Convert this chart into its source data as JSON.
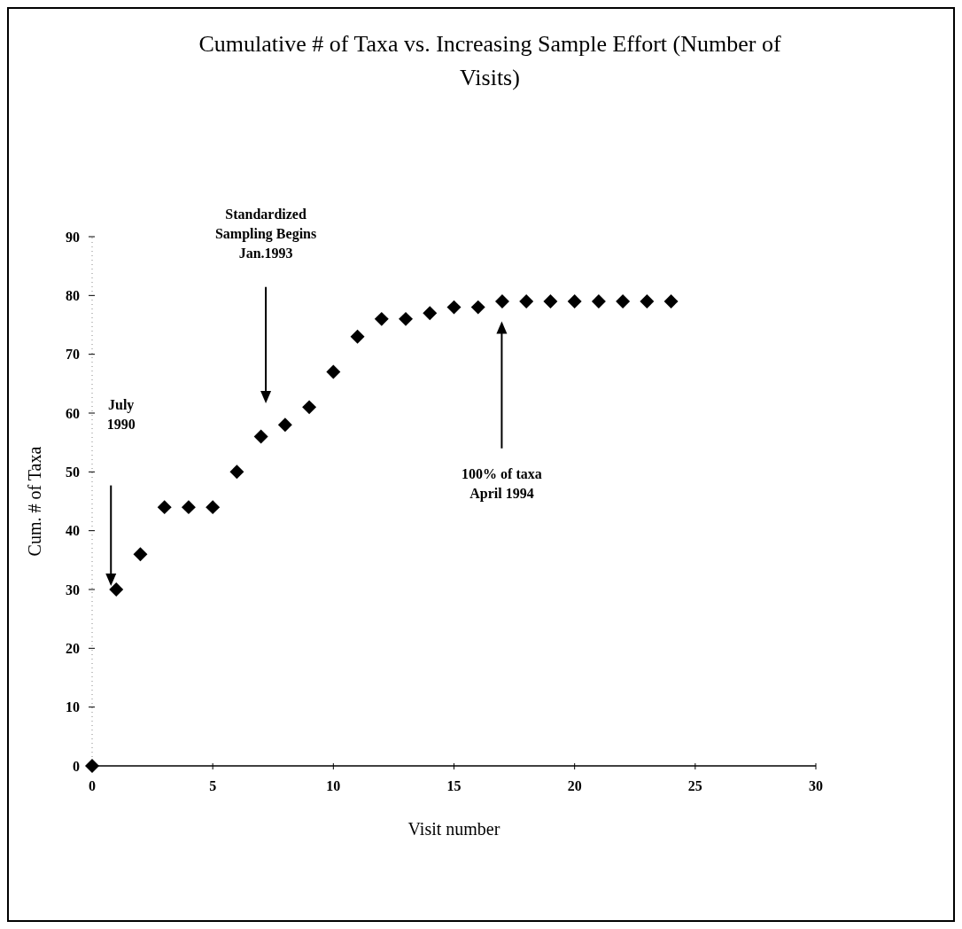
{
  "chart_data": {
    "type": "scatter",
    "title": "Cumulative # of Taxa vs. Increasing Sample Effort (Number of Visits)",
    "xlabel": "Visit number",
    "ylabel": "Cum. # of Taxa",
    "x": [
      0,
      1,
      2,
      3,
      4,
      5,
      6,
      7,
      8,
      9,
      10,
      11,
      12,
      13,
      14,
      15,
      16,
      17,
      18,
      19,
      20,
      21,
      22,
      23,
      24
    ],
    "series": [
      {
        "color": "#000000",
        "values": [
          0,
          30,
          36,
          44,
          44,
          44,
          50,
          56,
          58,
          61,
          67,
          73,
          76,
          76,
          77,
          78,
          78,
          79,
          79,
          79,
          79,
          79,
          79,
          79,
          79
        ]
      }
    ],
    "xlim": [
      0,
      30
    ],
    "xticks": [
      0,
      5,
      10,
      15,
      20,
      25,
      30
    ],
    "ylim": [
      0,
      90
    ],
    "yticks": [
      0,
      10,
      20,
      30,
      40,
      50,
      60,
      70,
      80,
      90
    ],
    "marker": "diamond",
    "annotations": [
      "July\n1990",
      "Standardized\nSampling Begins\nJan.1993",
      "100% of taxa\nApril 1994"
    ]
  }
}
